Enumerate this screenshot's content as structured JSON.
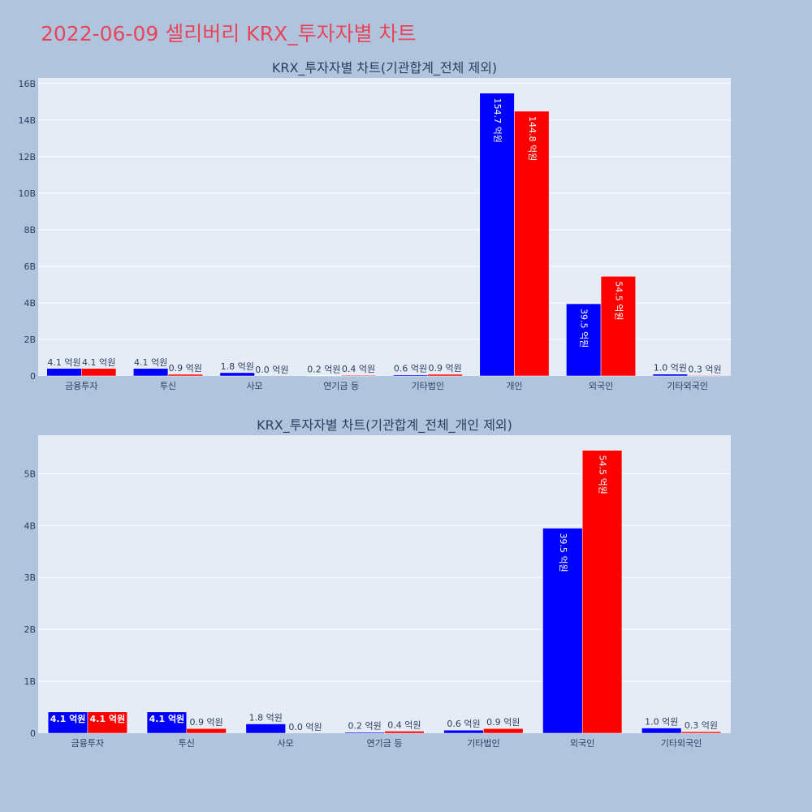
{
  "page": {
    "title": "2022-06-09 셀리버리 KRX_투자자별 차트",
    "background": "#b0c4de",
    "title_color": "#e8455a"
  },
  "colors": {
    "buy": "#0000ff",
    "sell": "#ff0000",
    "plot_bg": "#e5ecf6",
    "grid": "#ffffff"
  },
  "chart_data": [
    {
      "type": "bar",
      "title": "KRX_투자자별 차트(기관합계_전체 제외)",
      "categories": [
        "금융투자",
        "투신",
        "사모",
        "연기금 등",
        "기타법인",
        "개인",
        "외국인",
        "기타외국인"
      ],
      "series": [
        {
          "color": "#0000ff",
          "values": [
            410000000,
            410000000,
            180000000,
            20000000,
            60000000,
            15470000000,
            3950000000,
            100000000
          ],
          "labels": [
            "4.1 억원",
            "4.1 억원",
            "1.8 억원",
            "0.2 억원",
            "0.6 억원",
            "154.7 억원",
            "39.5 억원",
            "1.0 억원"
          ]
        },
        {
          "color": "#ff0000",
          "values": [
            410000000,
            90000000,
            0,
            40000000,
            90000000,
            14480000000,
            5450000000,
            30000000
          ],
          "labels": [
            "4.1 억원",
            "0.9 억원",
            "0.0 억원",
            "0.4 억원",
            "0.9 억원",
            "144.8 억원",
            "54.5 억원",
            "0.3 억원"
          ]
        }
      ],
      "ylim": [
        0,
        16300000000
      ],
      "yticks": [
        0,
        2000000000,
        4000000000,
        6000000000,
        8000000000,
        10000000000,
        12000000000,
        14000000000,
        16000000000
      ],
      "ytick_labels": [
        "0",
        "2B",
        "4B",
        "6B",
        "8B",
        "10B",
        "12B",
        "14B",
        "16B"
      ],
      "grid": true
    },
    {
      "type": "bar",
      "title": "KRX_투자자별 차트(기관합계_전체_개인 제외)",
      "categories": [
        "금융투자",
        "투신",
        "사모",
        "연기금 등",
        "기타법인",
        "외국인",
        "기타외국인"
      ],
      "series": [
        {
          "color": "#0000ff",
          "values": [
            410000000,
            410000000,
            180000000,
            20000000,
            60000000,
            3950000000,
            100000000
          ],
          "labels": [
            "4.1 억원",
            "4.1 억원",
            "1.8 억원",
            "0.2 억원",
            "0.6 억원",
            "39.5 억원",
            "1.0 억원"
          ]
        },
        {
          "color": "#ff0000",
          "values": [
            410000000,
            90000000,
            0,
            40000000,
            90000000,
            5450000000,
            30000000
          ],
          "labels": [
            "4.1 억원",
            "0.9 억원",
            "0.0 억원",
            "0.4 억원",
            "0.9 억원",
            "54.5 억원",
            "0.3 억원"
          ]
        }
      ],
      "ylim": [
        0,
        5740000000
      ],
      "yticks": [
        0,
        1000000000,
        2000000000,
        3000000000,
        4000000000,
        5000000000
      ],
      "ytick_labels": [
        "0",
        "1B",
        "2B",
        "3B",
        "4B",
        "5B"
      ],
      "grid": true
    }
  ]
}
